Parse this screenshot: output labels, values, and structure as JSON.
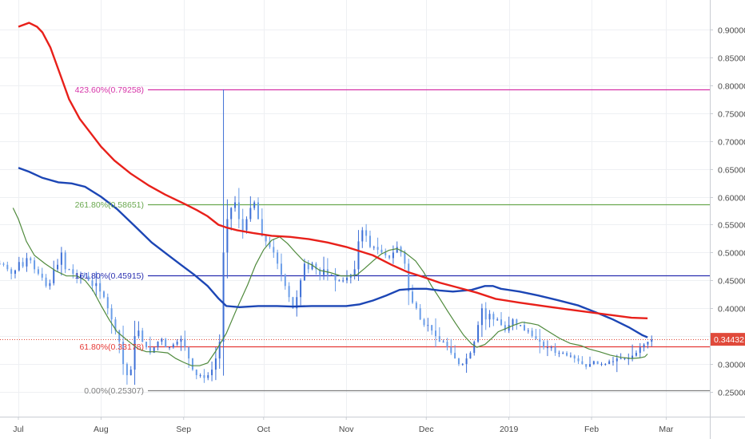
{
  "chart_data": {
    "type": "candlestick",
    "price_axis": {
      "ylim": [
        0.22,
        0.95
      ],
      "ticks": [
        "0.90000",
        "0.85000",
        "0.80000",
        "0.75000",
        "0.70000",
        "0.65000",
        "0.60000",
        "0.55000",
        "0.50000",
        "0.45000",
        "0.40000",
        "0.35000",
        "0.30000",
        "0.25000"
      ],
      "tick_values": [
        0.9,
        0.85,
        0.8,
        0.75,
        0.7,
        0.65,
        0.6,
        0.55,
        0.5,
        0.45,
        0.4,
        0.35,
        0.3,
        0.25
      ],
      "current_price_label": "0.34432",
      "current_price": 0.34432
    },
    "time_axis": {
      "labels": [
        "Jul",
        "Aug",
        "Sep",
        "Oct",
        "Nov",
        "Dec",
        "2019",
        "Feb",
        "Mar"
      ],
      "label_days": [
        0,
        31,
        62,
        92,
        123,
        153,
        184,
        215,
        243
      ]
    },
    "grid": true,
    "fib_levels": [
      {
        "label": "423.60%(0.79258)",
        "value": 0.79258,
        "color": "#d633a8"
      },
      {
        "label": "261.80%(0.58651)",
        "value": 0.58651,
        "color": "#6aa84f"
      },
      {
        "label": "161.80%(0.45915)",
        "value": 0.45915,
        "color": "#2a2fb0"
      },
      {
        "label": "61.80%(0.33178)",
        "value": 0.33178,
        "color": "#e53935"
      },
      {
        "label": "0.00%(0.25307)",
        "value": 0.25307,
        "color": "#808080"
      }
    ],
    "colors": {
      "up": "#3d6fd6",
      "down": "#6a9de8",
      "ma_long": "#e8201a",
      "ma_mid": "#1c46b5",
      "ma_short": "#4f8a3c",
      "current_price_bg": "#e04a3b"
    },
    "closes": [
      0.48,
      0.478,
      0.47,
      0.462,
      0.468,
      0.483,
      0.475,
      0.49,
      0.486,
      0.47,
      0.462,
      0.455,
      0.44,
      0.445,
      0.47,
      0.478,
      0.5,
      0.47,
      0.47,
      0.462,
      0.455,
      0.46,
      0.458,
      0.45,
      0.44,
      0.445,
      0.43,
      0.42,
      0.4,
      0.38,
      0.36,
      0.34,
      0.3,
      0.28,
      0.29,
      0.35,
      0.36,
      0.34,
      0.33,
      0.32,
      0.33,
      0.34,
      0.345,
      0.33,
      0.33,
      0.335,
      0.34,
      0.345,
      0.33,
      0.31,
      0.29,
      0.28,
      0.28,
      0.275,
      0.28,
      0.29,
      0.31,
      0.34,
      0.5,
      0.56,
      0.58,
      0.59,
      0.56,
      0.54,
      0.56,
      0.58,
      0.59,
      0.56,
      0.53,
      0.52,
      0.51,
      0.5,
      0.48,
      0.46,
      0.44,
      0.42,
      0.4,
      0.42,
      0.45,
      0.48,
      0.47,
      0.48,
      0.47,
      0.46,
      0.47,
      0.46,
      0.46,
      0.45,
      0.45,
      0.45,
      0.455,
      0.46,
      0.47,
      0.52,
      0.54,
      0.53,
      0.51,
      0.51,
      0.505,
      0.5,
      0.495,
      0.49,
      0.5,
      0.51,
      0.5,
      0.48,
      0.43,
      0.41,
      0.4,
      0.38,
      0.37,
      0.37,
      0.36,
      0.35,
      0.34,
      0.34,
      0.33,
      0.32,
      0.31,
      0.3,
      0.3,
      0.31,
      0.32,
      0.34,
      0.37,
      0.4,
      0.38,
      0.39,
      0.38,
      0.38,
      0.37,
      0.36,
      0.37,
      0.38,
      0.37,
      0.37,
      0.36,
      0.36,
      0.35,
      0.345,
      0.34,
      0.33,
      0.33,
      0.33,
      0.32,
      0.32,
      0.32,
      0.315,
      0.315,
      0.31,
      0.305,
      0.3,
      0.295,
      0.3,
      0.305,
      0.3,
      0.3,
      0.3,
      0.305,
      0.305,
      0.31,
      0.31,
      0.31,
      0.31,
      0.315,
      0.32,
      0.33,
      0.335,
      0.34,
      0.344
    ],
    "ma_long": [
      [
        0,
        0.905
      ],
      [
        4,
        0.912
      ],
      [
        7,
        0.905
      ],
      [
        9,
        0.895
      ],
      [
        12,
        0.868
      ],
      [
        16,
        0.815
      ],
      [
        19,
        0.775
      ],
      [
        23,
        0.74
      ],
      [
        27,
        0.715
      ],
      [
        31,
        0.69
      ],
      [
        36,
        0.665
      ],
      [
        42,
        0.642
      ],
      [
        49,
        0.62
      ],
      [
        55,
        0.604
      ],
      [
        62,
        0.588
      ],
      [
        67,
        0.576
      ],
      [
        71,
        0.565
      ],
      [
        75,
        0.55
      ],
      [
        78,
        0.545
      ],
      [
        82,
        0.54
      ],
      [
        88,
        0.535
      ],
      [
        95,
        0.53
      ],
      [
        102,
        0.528
      ],
      [
        109,
        0.524
      ],
      [
        116,
        0.518
      ],
      [
        123,
        0.51
      ],
      [
        133,
        0.495
      ],
      [
        140,
        0.478
      ],
      [
        146,
        0.465
      ],
      [
        152,
        0.456
      ],
      [
        158,
        0.446
      ],
      [
        165,
        0.437
      ],
      [
        172,
        0.428
      ],
      [
        179,
        0.417
      ],
      [
        188,
        0.41
      ],
      [
        197,
        0.404
      ],
      [
        206,
        0.398
      ],
      [
        214,
        0.393
      ],
      [
        222,
        0.388
      ],
      [
        230,
        0.383
      ],
      [
        236,
        0.382
      ]
    ],
    "ma_mid": [
      [
        0,
        0.652
      ],
      [
        4,
        0.645
      ],
      [
        9,
        0.634
      ],
      [
        15,
        0.626
      ],
      [
        20,
        0.624
      ],
      [
        25,
        0.618
      ],
      [
        31,
        0.6
      ],
      [
        37,
        0.578
      ],
      [
        44,
        0.546
      ],
      [
        50,
        0.518
      ],
      [
        56,
        0.496
      ],
      [
        61,
        0.478
      ],
      [
        66,
        0.46
      ],
      [
        71,
        0.44
      ],
      [
        75,
        0.418
      ],
      [
        78,
        0.404
      ],
      [
        83,
        0.402
      ],
      [
        90,
        0.404
      ],
      [
        97,
        0.404
      ],
      [
        103,
        0.403
      ],
      [
        110,
        0.404
      ],
      [
        117,
        0.404
      ],
      [
        123,
        0.404
      ],
      [
        128,
        0.407
      ],
      [
        133,
        0.414
      ],
      [
        138,
        0.423
      ],
      [
        143,
        0.433
      ],
      [
        148,
        0.435
      ],
      [
        153,
        0.435
      ],
      [
        158,
        0.432
      ],
      [
        163,
        0.43
      ],
      [
        170,
        0.433
      ],
      [
        175,
        0.44
      ],
      [
        178,
        0.44
      ],
      [
        181,
        0.435
      ],
      [
        188,
        0.43
      ],
      [
        195,
        0.423
      ],
      [
        202,
        0.415
      ],
      [
        210,
        0.405
      ],
      [
        217,
        0.392
      ],
      [
        223,
        0.38
      ],
      [
        229,
        0.366
      ],
      [
        234,
        0.352
      ],
      [
        236,
        0.348
      ]
    ],
    "ma_short": [
      [
        -2,
        0.58
      ],
      [
        0,
        0.56
      ],
      [
        3,
        0.52
      ],
      [
        6,
        0.495
      ],
      [
        10,
        0.48
      ],
      [
        14,
        0.467
      ],
      [
        18,
        0.458
      ],
      [
        22,
        0.458
      ],
      [
        25,
        0.45
      ],
      [
        28,
        0.432
      ],
      [
        31,
        0.405
      ],
      [
        34,
        0.38
      ],
      [
        37,
        0.358
      ],
      [
        41,
        0.342
      ],
      [
        45,
        0.327
      ],
      [
        48,
        0.322
      ],
      [
        52,
        0.322
      ],
      [
        56,
        0.32
      ],
      [
        59,
        0.31
      ],
      [
        62,
        0.303
      ],
      [
        65,
        0.297
      ],
      [
        68,
        0.297
      ],
      [
        71,
        0.302
      ],
      [
        74,
        0.323
      ],
      [
        78,
        0.355
      ],
      [
        82,
        0.4
      ],
      [
        86,
        0.442
      ],
      [
        89,
        0.478
      ],
      [
        92,
        0.505
      ],
      [
        95,
        0.522
      ],
      [
        98,
        0.528
      ],
      [
        101,
        0.516
      ],
      [
        104,
        0.5
      ],
      [
        107,
        0.485
      ],
      [
        110,
        0.478
      ],
      [
        113,
        0.468
      ],
      [
        117,
        0.464
      ],
      [
        121,
        0.458
      ],
      [
        124,
        0.458
      ],
      [
        127,
        0.46
      ],
      [
        130,
        0.472
      ],
      [
        133,
        0.485
      ],
      [
        136,
        0.497
      ],
      [
        139,
        0.504
      ],
      [
        142,
        0.507
      ],
      [
        145,
        0.5
      ],
      [
        149,
        0.485
      ],
      [
        152,
        0.465
      ],
      [
        155,
        0.44
      ],
      [
        158,
        0.418
      ],
      [
        161,
        0.395
      ],
      [
        164,
        0.373
      ],
      [
        167,
        0.352
      ],
      [
        170,
        0.336
      ],
      [
        172,
        0.33
      ],
      [
        175,
        0.335
      ],
      [
        178,
        0.348
      ],
      [
        180,
        0.358
      ],
      [
        183,
        0.364
      ],
      [
        186,
        0.37
      ],
      [
        189,
        0.375
      ],
      [
        192,
        0.373
      ],
      [
        195,
        0.37
      ],
      [
        199,
        0.358
      ],
      [
        203,
        0.346
      ],
      [
        207,
        0.337
      ],
      [
        211,
        0.333
      ],
      [
        214,
        0.327
      ],
      [
        218,
        0.322
      ],
      [
        222,
        0.316
      ],
      [
        226,
        0.312
      ],
      [
        230,
        0.31
      ],
      [
        233,
        0.311
      ],
      [
        235,
        0.313
      ],
      [
        236,
        0.318
      ]
    ]
  }
}
